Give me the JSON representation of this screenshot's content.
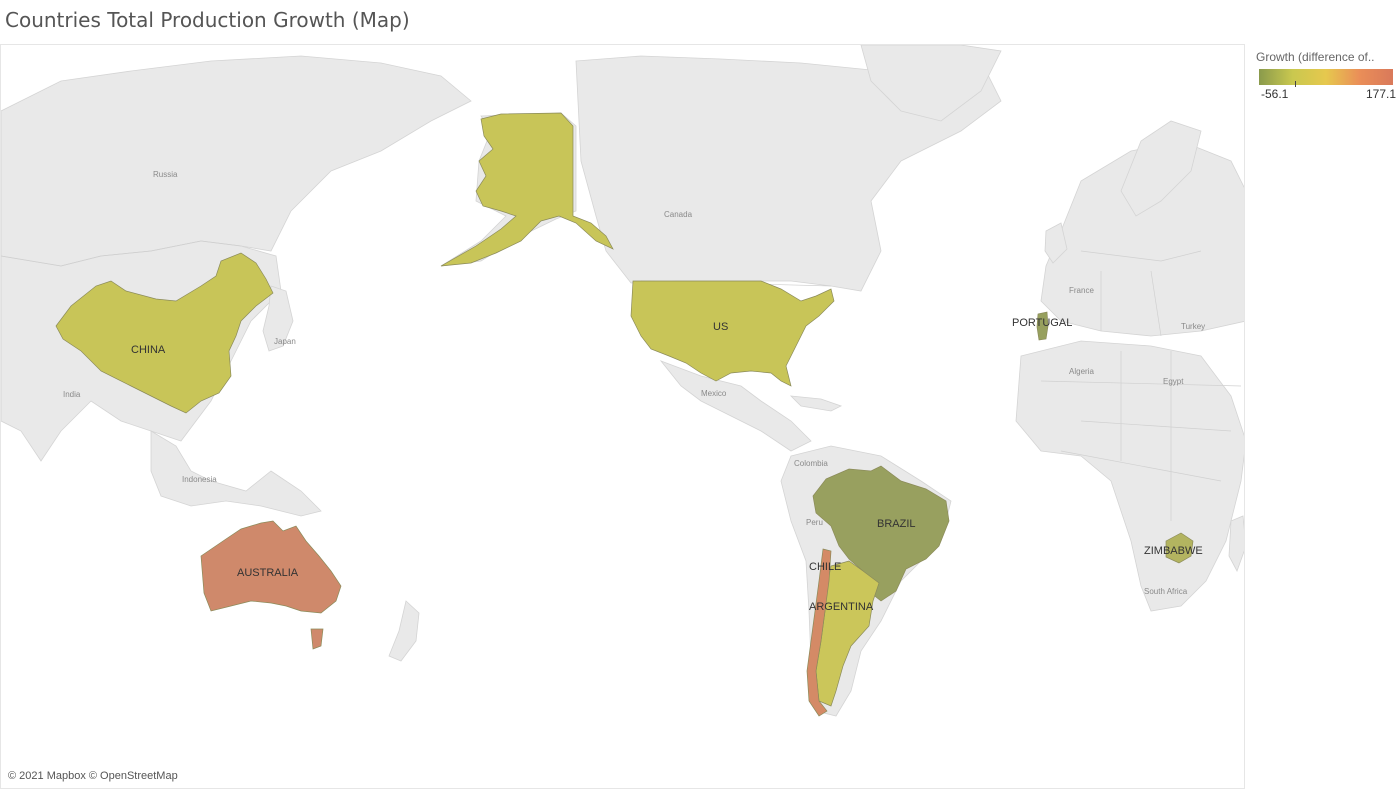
{
  "title": "Countries Total Production Growth (Map)",
  "legend": {
    "title": "Growth (difference of..",
    "min_label": "-56.1",
    "max_label": "177.1",
    "min_value": -56.1,
    "max_value": 177.1,
    "colors": [
      "#8a9a4c",
      "#c9c84f",
      "#e6c84e",
      "#ea8e58",
      "#d9795a"
    ]
  },
  "attribution": "© 2021 Mapbox © OpenStreetMap",
  "countries": [
    {
      "name": "CHINA",
      "color": "#c8c558"
    },
    {
      "name": "US",
      "color": "#c8c558"
    },
    {
      "name": "PORTUGAL",
      "color": "#97a05e"
    },
    {
      "name": "BRAZIL",
      "color": "#98a05f"
    },
    {
      "name": "CHILE",
      "color": "#d48a66"
    },
    {
      "name": "ARGENTINA",
      "color": "#cbc65a"
    },
    {
      "name": "ZIMBABWE",
      "color": "#b3b460"
    },
    {
      "name": "AUSTRALIA",
      "color": "#cf896b"
    }
  ],
  "base_labels": [
    "Russia",
    "Canada",
    "Japan",
    "India",
    "Indonesia",
    "Mexico",
    "Colombia",
    "Peru",
    "France",
    "Turkey",
    "Algeria",
    "Egypt",
    "South Africa"
  ],
  "colors": {
    "land": "#e9e9e9",
    "ocean": "#ffffff",
    "border": "#cfcfcf"
  }
}
